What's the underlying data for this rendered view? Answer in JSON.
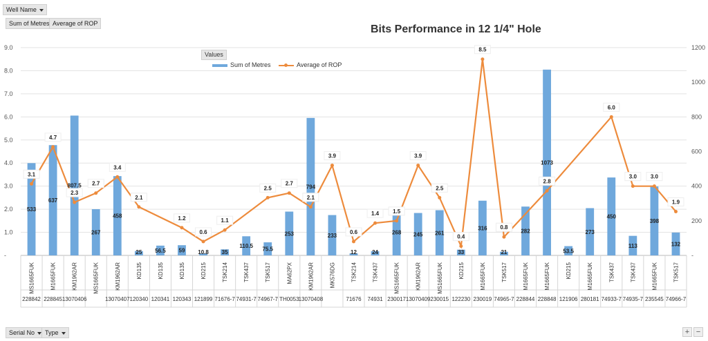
{
  "filters": {
    "well_name": "Well Name",
    "sum_metres": "Sum of Metres",
    "avg_rop": "Average of ROP",
    "serial_no": "Serial No",
    "type": "Type"
  },
  "legend": {
    "header": "Values"
  },
  "zoom": {
    "plus": "+",
    "minus": "−"
  },
  "chart_data": {
    "type": "bar",
    "title": "Bits Performance in 12 1/4\" Hole",
    "xlabel": "",
    "ylabel": "",
    "y_left_ticks": [
      "9.0",
      "8.0",
      "7.0",
      "6.0",
      "5.0",
      "4.0",
      "3.0",
      "2.0",
      "1.0",
      "-"
    ],
    "y_left_lim": [
      0,
      9
    ],
    "y_right_ticks": [
      "1200",
      "1000",
      "800",
      "600",
      "400",
      "200",
      "-"
    ],
    "y_right_lim": [
      0,
      1200
    ],
    "grid": true,
    "legend_position": "top-center",
    "colors": {
      "bar": "#6fa8dc",
      "line": "#ed8b3c"
    },
    "categories": [
      {
        "type": "MS1665FUK",
        "serial": "228842"
      },
      {
        "type": "M1665FUK",
        "serial": "228845"
      },
      {
        "type": "KM1962AR",
        "serial": "13070406"
      },
      {
        "type": "MS1665FUK",
        "serial": ""
      },
      {
        "type": "KM1962AR",
        "serial": "13070407"
      },
      {
        "type": "KD135",
        "serial": "120340"
      },
      {
        "type": "KD135",
        "serial": "120341"
      },
      {
        "type": "KD135",
        "serial": "120343"
      },
      {
        "type": "KD215",
        "serial": "121899"
      },
      {
        "type": "TSK214",
        "serial": "71676-7"
      },
      {
        "type": "TSK437",
        "serial": "74931-7"
      },
      {
        "type": "TSK517",
        "serial": "74967-7"
      },
      {
        "type": "MA62PX",
        "serial": "TH0053"
      },
      {
        "type": "KM1962AR",
        "serial": "13070408"
      },
      {
        "type": "MK576DG",
        "serial": ""
      },
      {
        "type": "TSK214",
        "serial": "71676"
      },
      {
        "type": "TSK437",
        "serial": "74931"
      },
      {
        "type": "MS1665FUK",
        "serial": "230017"
      },
      {
        "type": "KM1962AR",
        "serial": "13070409"
      },
      {
        "type": "MS1665FUK",
        "serial": "230015"
      },
      {
        "type": "KD215",
        "serial": "122230"
      },
      {
        "type": "M1665FUK",
        "serial": "230019"
      },
      {
        "type": "TSK517",
        "serial": "74965-7"
      },
      {
        "type": "M1665FUK",
        "serial": "228844"
      },
      {
        "type": "M1665FUK",
        "serial": "228848"
      },
      {
        "type": "KD215",
        "serial": "121906"
      },
      {
        "type": "M1665FUK",
        "serial": "280181"
      },
      {
        "type": "TSK437",
        "serial": "74933-7"
      },
      {
        "type": "TSK437",
        "serial": "74935-7"
      },
      {
        "type": "M1665FUK",
        "serial": "235545"
      },
      {
        "type": "TSK517",
        "serial": "74966-7"
      }
    ],
    "series": [
      {
        "name": "Sum of Metres",
        "axis": "right",
        "values": [
          533,
          637,
          807.5,
          267,
          458,
          25,
          56.5,
          59,
          10.8,
          35,
          110.5,
          75.5,
          253,
          794,
          233,
          12,
          24,
          268,
          245,
          261,
          33,
          316,
          21,
          282,
          1073,
          53.5,
          273,
          450,
          113,
          398,
          132
        ],
        "labels": [
          "533",
          "637",
          "807.5",
          "267",
          "458",
          "25",
          "56.5",
          "59",
          "10.8",
          "35",
          "110.5",
          "75.5",
          "253",
          "794",
          "233",
          "12",
          "24",
          "268",
          "245",
          "261",
          "33",
          "316",
          "21",
          "282",
          "1073",
          "53.5",
          "273",
          "450",
          "113",
          "398",
          "132"
        ]
      },
      {
        "name": "Average of ROP",
        "axis": "left",
        "values": [
          3.1,
          4.7,
          2.3,
          2.7,
          3.4,
          2.1,
          null,
          1.2,
          0.6,
          1.1,
          null,
          2.5,
          2.7,
          2.1,
          3.9,
          0.6,
          1.4,
          1.5,
          3.9,
          2.5,
          0.4,
          8.5,
          0.8,
          null,
          2.8,
          null,
          null,
          6.0,
          3.0,
          3.0,
          1.9
        ],
        "labels": [
          "3.1",
          "4.7",
          "2.3",
          "2.7",
          "3.4",
          "2.1",
          "",
          "1.2",
          "0.6",
          "1.1",
          "",
          "2.5",
          "2.7",
          "2.1",
          "3.9",
          "0.6",
          "1.4",
          "1.5",
          "3.9",
          "2.5",
          "0.4",
          "8.5",
          "0.8",
          "",
          "2.8",
          "",
          "",
          "6.0",
          "3.0",
          "3.0",
          "1.9"
        ]
      }
    ]
  }
}
